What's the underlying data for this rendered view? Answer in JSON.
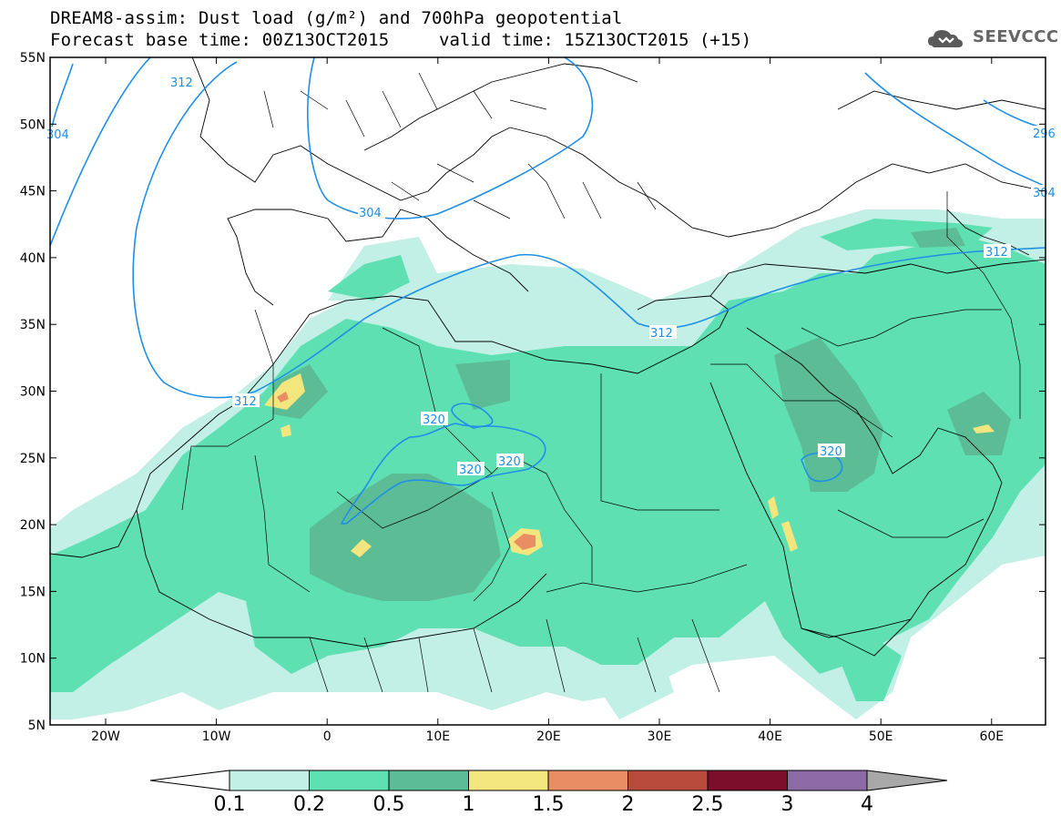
{
  "header": {
    "line1": "DREAM8-assim: Dust load (g/m²) and 700hPa geopotential",
    "line2a": "Forecast base time: 00Z13OCT2015",
    "line2b": "valid time: 15Z13OCT2015 (+15)"
  },
  "logo": {
    "text": "SEEVCCC",
    "icon": "cloud-logo-icon"
  },
  "axes": {
    "lat_labels": [
      "55N",
      "50N",
      "45N",
      "40N",
      "35N",
      "30N",
      "25N",
      "20N",
      "15N",
      "10N",
      "5N"
    ],
    "lon_labels": [
      "20W",
      "10W",
      "0",
      "10E",
      "20E",
      "30E",
      "40E",
      "50E",
      "60E"
    ]
  },
  "contours": {
    "labels": [
      "312",
      "304",
      "304",
      "312",
      "312",
      "312",
      "320",
      "320",
      "320",
      "320",
      "312",
      "296",
      "304"
    ]
  },
  "colorbar": {
    "ticks": [
      "0.1",
      "0.2",
      "0.5",
      "1",
      "1.5",
      "2",
      "2.5",
      "3",
      "4"
    ],
    "colors": [
      "#c2f0e6",
      "#5fe0b2",
      "#5cbc96",
      "#f4e67e",
      "#e98e64",
      "#b84a3c",
      "#7c0e2c",
      "#8c6aa6",
      "#a8a8a8"
    ],
    "under_color": "#ffffff"
  },
  "colors": {
    "frame": "#000000",
    "coast": "#000000",
    "contour": "#1f8fe8"
  }
}
